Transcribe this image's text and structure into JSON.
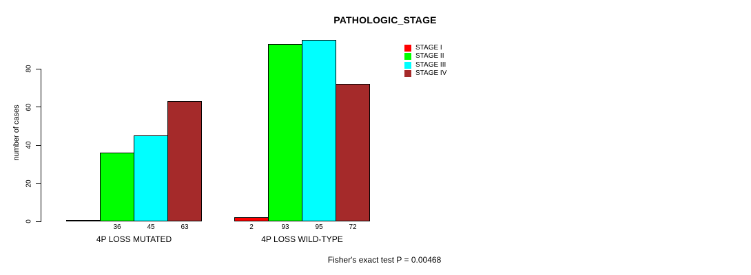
{
  "chart_data": {
    "type": "bar",
    "title": "PATHOLOGIC_STAGE",
    "ylabel": "number of cases",
    "xlabel": "",
    "yticks": [
      0,
      20,
      40,
      60,
      80
    ],
    "ylim": [
      0,
      95
    ],
    "grid": false,
    "legend_position": "top-right",
    "categories": [
      "4P LOSS MUTATED",
      "4P LOSS WILD-TYPE"
    ],
    "series": [
      {
        "name": "STAGE I",
        "color": "#ff0000",
        "values": [
          0,
          2
        ]
      },
      {
        "name": "STAGE II",
        "color": "#00ff00",
        "values": [
          36,
          93
        ]
      },
      {
        "name": "STAGE III",
        "color": "#00ffff",
        "values": [
          45,
          95
        ]
      },
      {
        "name": "STAGE IV",
        "color": "#a52a2a",
        "values": [
          63,
          72
        ]
      }
    ],
    "bar_value_labels": [
      [
        "",
        "36",
        "45",
        "63"
      ],
      [
        "2",
        "93",
        "95",
        "72"
      ]
    ],
    "annotation": "Fisher's exact test P = 0.00468"
  }
}
